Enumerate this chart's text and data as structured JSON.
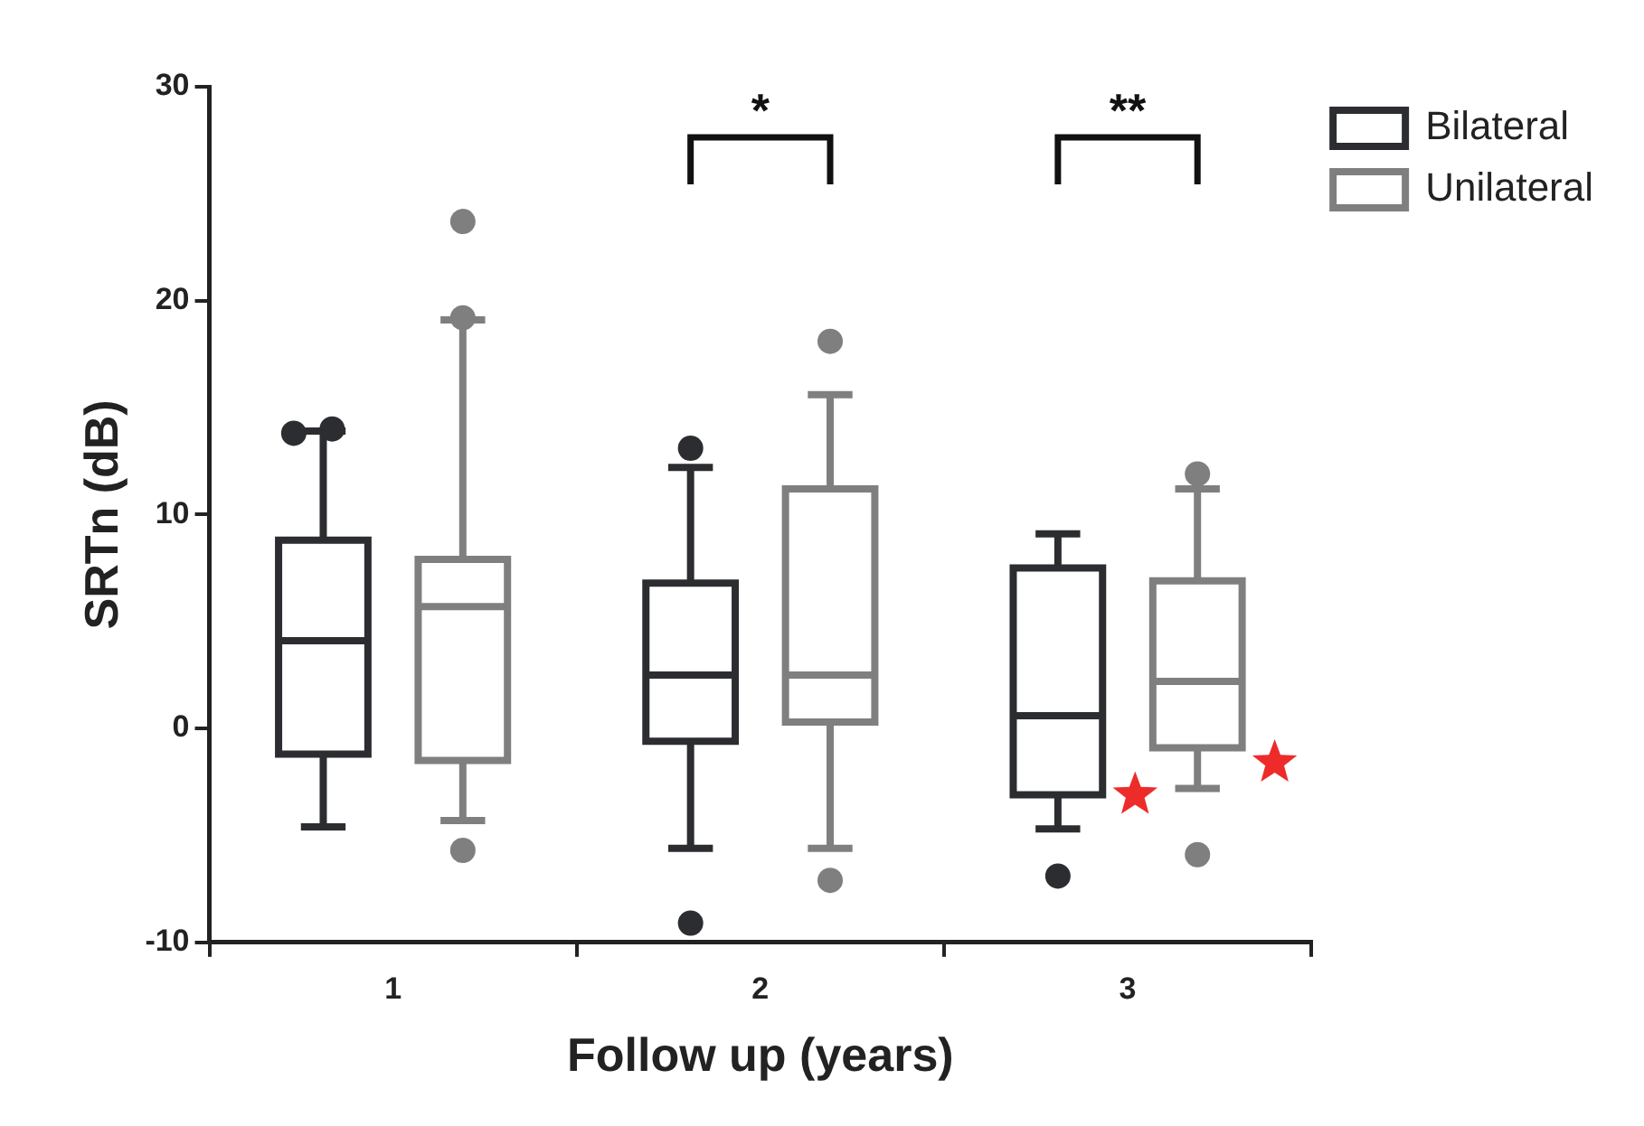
{
  "chart_data": {
    "type": "box",
    "xlabel": "Follow up (years)",
    "ylabel": "SRTn (dB)",
    "categories": [
      "1",
      "2",
      "3"
    ],
    "ylim": [
      -10,
      30
    ],
    "yticks": [
      -10,
      0,
      10,
      20,
      30
    ],
    "grid": false,
    "legend": "top right",
    "series": [
      {
        "name": "Bilateral",
        "color": "#2b2d30",
        "boxes": [
          {
            "low": -4.6,
            "q1": -1.2,
            "median": 4.1,
            "q3": 8.8,
            "high": 13.9,
            "outliers": [
              13.8,
              14.0
            ]
          },
          {
            "low": -5.6,
            "q1": -0.6,
            "median": 2.5,
            "q3": 6.8,
            "high": 12.2,
            "outliers": [
              13.1,
              -9.1
            ]
          },
          {
            "low": -4.7,
            "q1": -3.1,
            "median": 0.6,
            "q3": 7.5,
            "high": 9.1,
            "outliers": [
              -6.9
            ]
          }
        ]
      },
      {
        "name": "Unilateral",
        "color": "#7f7f7f",
        "boxes": [
          {
            "low": -4.3,
            "q1": -1.5,
            "median": 5.7,
            "q3": 7.9,
            "high": 19.1,
            "outliers": [
              23.7,
              19.2,
              -5.7
            ]
          },
          {
            "low": -5.6,
            "q1": 0.3,
            "median": 2.5,
            "q3": 11.2,
            "high": 15.6,
            "outliers": [
              18.1,
              -7.1
            ]
          },
          {
            "low": -2.8,
            "q1": -0.9,
            "median": 2.2,
            "q3": 6.9,
            "high": 11.2,
            "outliers": [
              11.9,
              -5.9
            ]
          }
        ]
      },
      {
        "type": "scatter",
        "x": [
          "3",
          "3"
        ],
        "values": [
          -3.1,
          -1.6
        ],
        "color": "#ee2b2b",
        "marker": "star"
      }
    ],
    "annotations": [
      "*",
      "**"
    ]
  }
}
